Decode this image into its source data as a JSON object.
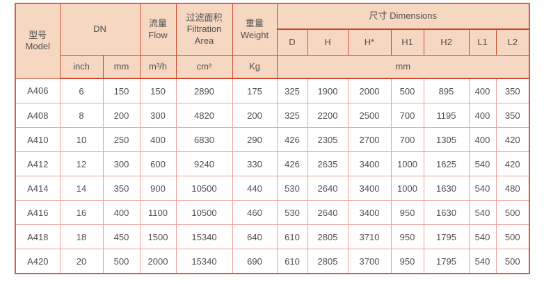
{
  "table": {
    "header": {
      "model": "型号\nModel",
      "dn": "DN",
      "flow": "流量\nFlow",
      "filtration_area": "过滤面积\nFiltration\nArea",
      "weight": "重量\nWeight",
      "dimensions": "尺寸 Dimensions",
      "dim_cols": [
        "D",
        "H",
        "H*",
        "H1",
        "H2",
        "L1",
        "L2"
      ],
      "units": {
        "dn_inch": "inch",
        "dn_mm": "mm",
        "flow": "m³/h",
        "filtration_area": "cm²",
        "weight": "Kg",
        "dimensions": "mm"
      }
    },
    "columns": [
      "model",
      "dn_inch",
      "dn_mm",
      "flow",
      "filtration_area",
      "weight",
      "D",
      "H",
      "H*",
      "H1",
      "H2",
      "L1",
      "L2"
    ],
    "rows": [
      [
        "A406",
        "6",
        "150",
        "150",
        "2890",
        "175",
        "325",
        "1900",
        "2000",
        "500",
        "895",
        "400",
        "350"
      ],
      [
        "A408",
        "8",
        "200",
        "300",
        "4820",
        "200",
        "325",
        "2200",
        "2500",
        "700",
        "1195",
        "400",
        "350"
      ],
      [
        "A410",
        "10",
        "250",
        "400",
        "6830",
        "290",
        "426",
        "2305",
        "2700",
        "700",
        "1305",
        "400",
        "420"
      ],
      [
        "A412",
        "12",
        "300",
        "600",
        "9240",
        "330",
        "426",
        "2635",
        "3400",
        "1000",
        "1625",
        "540",
        "420"
      ],
      [
        "A414",
        "14",
        "350",
        "900",
        "10500",
        "440",
        "530",
        "2640",
        "3400",
        "1000",
        "1630",
        "540",
        "480"
      ],
      [
        "A416",
        "16",
        "400",
        "1100",
        "10500",
        "460",
        "530",
        "2640",
        "3400",
        "950",
        "1630",
        "540",
        "500"
      ],
      [
        "A418",
        "18",
        "450",
        "1500",
        "15340",
        "640",
        "610",
        "2805",
        "3710",
        "950",
        "1795",
        "540",
        "500"
      ],
      [
        "A420",
        "20",
        "500",
        "2000",
        "15340",
        "690",
        "610",
        "2805",
        "3700",
        "950",
        "1795",
        "540",
        "500"
      ]
    ]
  },
  "colors": {
    "header_bg": "#f6d7c2",
    "header_border": "#cb4a2e",
    "body_border": "#f2a096",
    "outer_border": "#e1564b",
    "text": "#4f4f4f"
  }
}
